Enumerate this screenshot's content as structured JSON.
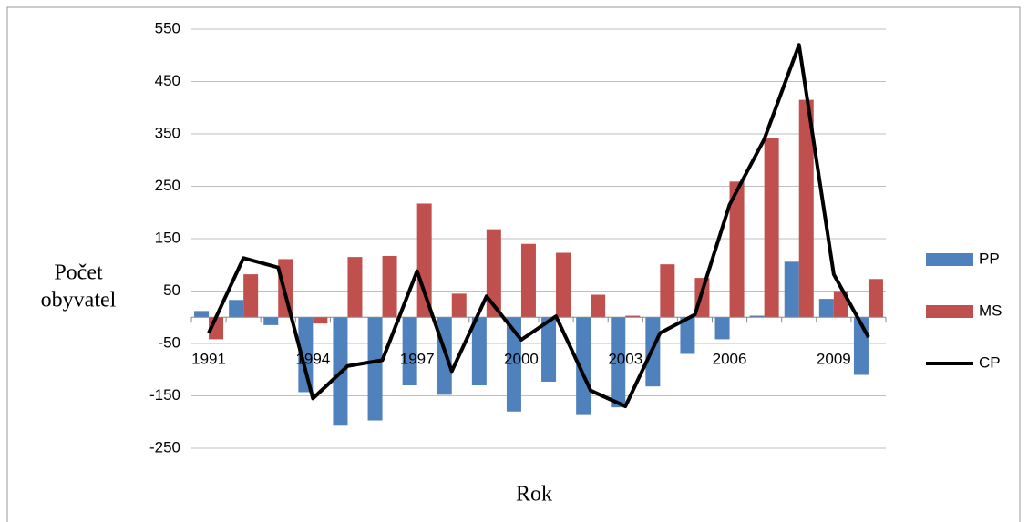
{
  "chart_data": {
    "type": "bar-line",
    "categories": [
      "1991",
      null,
      null,
      "1994",
      null,
      null,
      "1997",
      null,
      null,
      "2000",
      null,
      null,
      "2003",
      null,
      null,
      "2006",
      null,
      null,
      "2009",
      null
    ],
    "series": [
      {
        "name": "PP",
        "type": "bar",
        "color": "#4f81bd",
        "values": [
          12,
          33,
          -15,
          -143,
          -207,
          -197,
          -130,
          -148,
          -130,
          -180,
          -123,
          -185,
          -172,
          -132,
          -70,
          -42,
          3,
          106,
          35,
          -110
        ]
      },
      {
        "name": "MS",
        "type": "bar",
        "color": "#c0504d",
        "values": [
          -42,
          82,
          111,
          -12,
          115,
          117,
          217,
          45,
          168,
          140,
          123,
          43,
          3,
          101,
          75,
          259,
          342,
          415,
          50,
          73
        ]
      },
      {
        "name": "CP",
        "type": "line",
        "color": "#000000",
        "values": [
          -30,
          113,
          95,
          -155,
          -93,
          -82,
          88,
          -103,
          40,
          -43,
          2,
          -140,
          -170,
          -30,
          5,
          215,
          340,
          520,
          82,
          -38
        ]
      }
    ],
    "x_label": "Rok",
    "y_label": [
      "Počet",
      "obyvatel"
    ],
    "ylim": [
      -250,
      550
    ],
    "yticks": [
      -250,
      -150,
      -50,
      50,
      150,
      250,
      350,
      450,
      550
    ],
    "grid": true,
    "legend": "right"
  }
}
